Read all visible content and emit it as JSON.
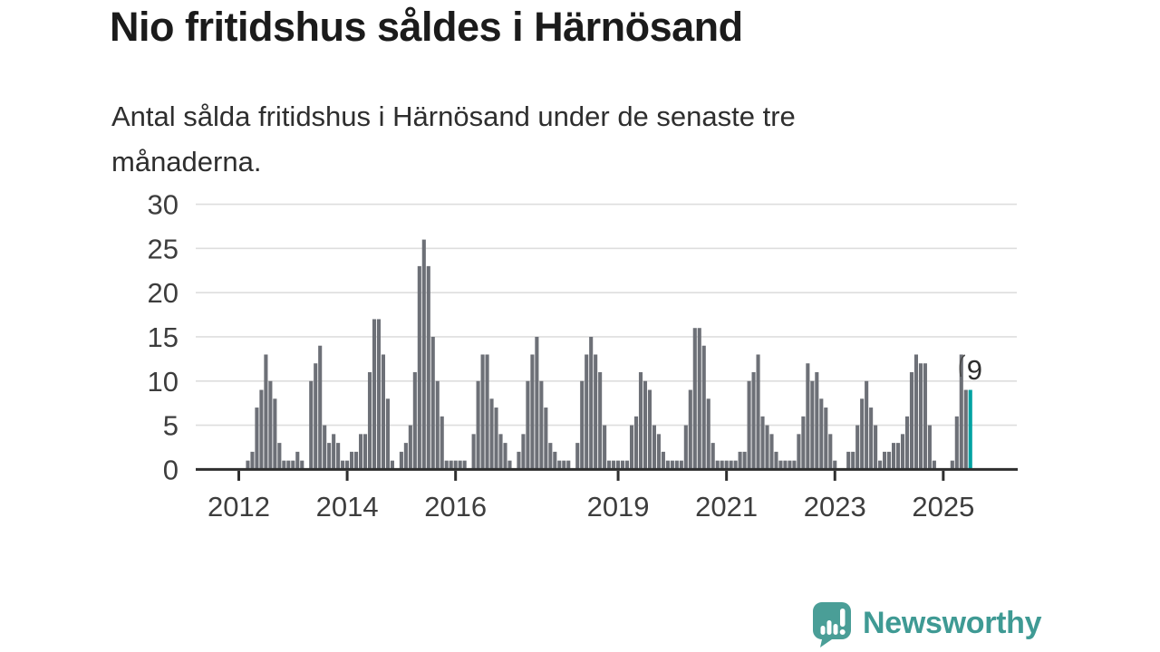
{
  "header": {
    "title": "Nio fritidshus såldes i Härnösand",
    "subtitle": "Antal sålda fritidshus i Härnösand under de senaste tre månaderna.",
    "subtitle_lines": [
      "Antal sålda fritidshus i Härnösand under de senaste tre",
      "månaderna."
    ]
  },
  "chart_data": {
    "type": "bar",
    "title": "Nio fritidshus såldes i Härnösand",
    "subtitle": "Antal sålda fritidshus i Härnösand under de senaste tre månaderna.",
    "frequency": "monthly",
    "x_start": {
      "year": 2012,
      "month": 1
    },
    "x_end": {
      "year": 2025,
      "month": 7
    },
    "values": [
      0,
      0,
      1,
      2,
      7,
      9,
      13,
      10,
      8,
      3,
      1,
      1,
      1,
      2,
      1,
      0,
      10,
      12,
      14,
      5,
      3,
      4,
      3,
      1,
      1,
      2,
      2,
      4,
      4,
      11,
      17,
      17,
      13,
      8,
      1,
      0,
      2,
      3,
      5,
      11,
      23,
      26,
      23,
      15,
      10,
      6,
      1,
      1,
      1,
      1,
      1,
      0,
      4,
      10,
      13,
      13,
      8,
      7,
      4,
      3,
      1,
      0,
      2,
      4,
      10,
      13,
      15,
      10,
      7,
      3,
      2,
      1,
      1,
      1,
      0,
      3,
      10,
      13,
      15,
      13,
      11,
      5,
      1,
      1,
      1,
      1,
      1,
      5,
      6,
      11,
      10,
      9,
      5,
      4,
      2,
      1,
      1,
      1,
      1,
      5,
      9,
      16,
      16,
      14,
      8,
      3,
      1,
      1,
      1,
      1,
      1,
      2,
      2,
      10,
      11,
      13,
      6,
      5,
      4,
      2,
      1,
      1,
      1,
      1,
      4,
      6,
      12,
      10,
      11,
      8,
      7,
      4,
      1,
      0,
      0,
      2,
      2,
      5,
      8,
      10,
      7,
      5,
      1,
      2,
      2,
      3,
      3,
      4,
      6,
      11,
      13,
      12,
      12,
      5,
      1,
      0,
      0,
      0,
      1,
      6,
      13,
      9,
      9
    ],
    "highlight": {
      "index": 162,
      "value": 9,
      "label": "9",
      "color": "#00a2a2"
    },
    "bar_color": "#6d7077",
    "grid_color": "#dedede",
    "axis_color": "#2e2e2e",
    "axis_label_color": "#3d3d3d",
    "annotation_color": "#2e2e2e",
    "y_axis": {
      "ticks": [
        0,
        5,
        10,
        15,
        20,
        25,
        30
      ],
      "range": [
        0,
        30
      ],
      "grid": true
    },
    "x_axis": {
      "tick_years": [
        2012,
        2014,
        2016,
        2019,
        2021,
        2023,
        2025
      ]
    },
    "legend": "none"
  },
  "footer": {
    "brand": "Newsworthy",
    "brand_color": "#3f9a94"
  }
}
